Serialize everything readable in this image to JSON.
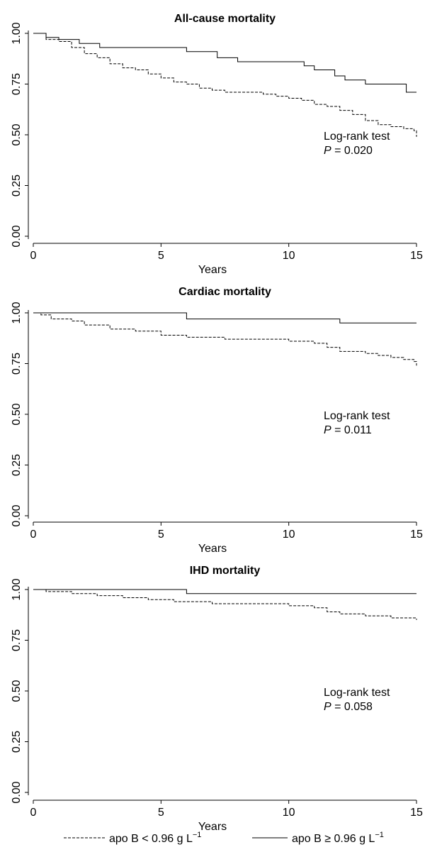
{
  "chart_data": [
    {
      "type": "line",
      "title": "All-cause mortality",
      "xlabel": "Years",
      "ylabel": "",
      "xlim": [
        0,
        15
      ],
      "ylim": [
        0,
        1
      ],
      "xticks": [
        "0",
        "5",
        "10",
        "15"
      ],
      "yticks": [
        "0.00",
        "0.25",
        "0.50",
        "0.75",
        "1.00"
      ],
      "annotation": [
        "Log-rank test",
        "P = 0.020"
      ],
      "series": [
        {
          "style": "dashed",
          "x": [
            0,
            0.5,
            1.0,
            1.5,
            2.0,
            2.5,
            3.0,
            3.5,
            4.0,
            4.5,
            5.0,
            5.5,
            6.0,
            6.5,
            7.0,
            7.5,
            8.0,
            8.5,
            9.0,
            9.5,
            10.0,
            10.5,
            11.0,
            11.5,
            12.0,
            12.5,
            13.0,
            13.5,
            14.0,
            14.5,
            14.9,
            15.0
          ],
          "y": [
            1.0,
            0.97,
            0.96,
            0.93,
            0.9,
            0.88,
            0.85,
            0.83,
            0.82,
            0.8,
            0.78,
            0.76,
            0.75,
            0.73,
            0.72,
            0.71,
            0.71,
            0.71,
            0.7,
            0.69,
            0.68,
            0.67,
            0.65,
            0.64,
            0.62,
            0.6,
            0.57,
            0.55,
            0.54,
            0.53,
            0.52,
            0.49
          ]
        },
        {
          "style": "solid",
          "x": [
            0,
            0.5,
            1.0,
            1.8,
            2.6,
            6.0,
            7.2,
            8.0,
            10.6,
            11.0,
            11.8,
            12.2,
            13.0,
            14.6,
            15.0
          ],
          "y": [
            1.0,
            0.98,
            0.97,
            0.95,
            0.93,
            0.91,
            0.88,
            0.86,
            0.84,
            0.82,
            0.79,
            0.77,
            0.75,
            0.71,
            0.71
          ]
        }
      ]
    },
    {
      "type": "line",
      "title": "Cardiac mortality",
      "xlabel": "Years",
      "ylabel": "",
      "xlim": [
        0,
        15
      ],
      "ylim": [
        0,
        1
      ],
      "xticks": [
        "0",
        "5",
        "10",
        "15"
      ],
      "yticks": [
        "0.00",
        "0.25",
        "0.50",
        "0.75",
        "1.00"
      ],
      "annotation": [
        "Log-rank test",
        "P = 0.011"
      ],
      "series": [
        {
          "style": "dashed",
          "x": [
            0,
            0.3,
            0.7,
            1.5,
            2.0,
            3.0,
            4.0,
            5.0,
            6.0,
            6.5,
            7.5,
            8.5,
            9.5,
            10.0,
            11.0,
            11.5,
            12.0,
            13.0,
            13.5,
            14.0,
            14.5,
            14.9,
            15.0
          ],
          "y": [
            1.0,
            0.99,
            0.97,
            0.96,
            0.94,
            0.92,
            0.91,
            0.89,
            0.88,
            0.88,
            0.87,
            0.87,
            0.87,
            0.86,
            0.85,
            0.83,
            0.81,
            0.8,
            0.79,
            0.78,
            0.77,
            0.76,
            0.74
          ]
        },
        {
          "style": "solid",
          "x": [
            0,
            6.0,
            12.0,
            15.0
          ],
          "y": [
            1.0,
            0.97,
            0.95,
            0.95
          ]
        }
      ]
    },
    {
      "type": "line",
      "title": "IHD mortality",
      "xlabel": "Years",
      "ylabel": "",
      "xlim": [
        0,
        15
      ],
      "ylim": [
        0,
        1
      ],
      "xticks": [
        "0",
        "5",
        "10",
        "15"
      ],
      "yticks": [
        "0.00",
        "0.25",
        "0.50",
        "0.75",
        "1.00"
      ],
      "annotation": [
        "Log-rank test",
        "P = 0.058"
      ],
      "series": [
        {
          "style": "dashed",
          "x": [
            0,
            0.5,
            1.5,
            2.5,
            3.5,
            4.5,
            5.5,
            6.0,
            7.0,
            8.0,
            9.0,
            10.0,
            11.0,
            11.5,
            12.0,
            13.0,
            14.0,
            14.9,
            15.0
          ],
          "y": [
            1.0,
            0.99,
            0.98,
            0.97,
            0.96,
            0.95,
            0.94,
            0.94,
            0.93,
            0.93,
            0.93,
            0.92,
            0.91,
            0.89,
            0.88,
            0.87,
            0.86,
            0.86,
            0.85
          ]
        },
        {
          "style": "solid",
          "x": [
            0,
            6.0,
            15.0
          ],
          "y": [
            1.0,
            0.98,
            0.98
          ]
        }
      ]
    }
  ],
  "legend": {
    "below": "apo B < 0.96 g L",
    "above": "apo B ≥ 0.96 g L",
    "superscript": "−1"
  }
}
